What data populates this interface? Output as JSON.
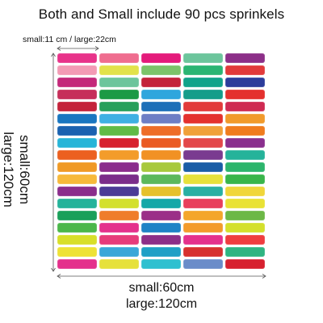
{
  "title": "Both and Small include 90 pcs sprinkels",
  "top_label": "small:11 cm / large:22cm",
  "side_label_1": "small:60cm",
  "side_label_2": "large:120cm",
  "bottom_label_1": "small:60cm",
  "bottom_label_2": "large:120cm",
  "pill_colors": [
    [
      "#e8338a",
      "#ef6d8f",
      "#e41b7b",
      "#6cc59c",
      "#8c2f88"
    ],
    [
      "#f39bb5",
      "#e2e24a",
      "#7bc46a",
      "#2bb573",
      "#e23a3a"
    ],
    [
      "#c4287a",
      "#6cc59c",
      "#c4233a",
      "#11a38a",
      "#2c3d9b"
    ],
    [
      "#c62f5a",
      "#1c9a45",
      "#2fa6dd",
      "#149d8a",
      "#e4312e"
    ],
    [
      "#c4233a",
      "#27a05b",
      "#1d6fb8",
      "#e23a3a",
      "#cf2a52"
    ],
    [
      "#1976c0",
      "#3fb0e3",
      "#6e7ec5",
      "#e4312e",
      "#f19a2b"
    ],
    [
      "#1b62b0",
      "#60bb46",
      "#ee6d28",
      "#f0a13a",
      "#f07c1e"
    ],
    [
      "#27b5d8",
      "#d7212f",
      "#ea5b24",
      "#e3484a",
      "#8a2f8e"
    ],
    [
      "#ec6020",
      "#f39c2a",
      "#f19124",
      "#7a3b90",
      "#25b39a"
    ],
    [
      "#f09a25",
      "#8b2d8c",
      "#a8c93c",
      "#1a5da6",
      "#2db56c"
    ],
    [
      "#f7b93a",
      "#7b2d8a",
      "#5cb85c",
      "#e6e13b",
      "#39b54a"
    ],
    [
      "#8b2d8c",
      "#4c3b96",
      "#e6c12c",
      "#28b0a3",
      "#f0d63a"
    ],
    [
      "#25b39a",
      "#d3e02e",
      "#15a8a8",
      "#e83f5c",
      "#e9e235"
    ],
    [
      "#1aa05a",
      "#ef7d2b",
      "#9b2f88",
      "#f4a62a",
      "#6cb846"
    ],
    [
      "#4bb74a",
      "#e4318c",
      "#1e83c6",
      "#f39b2b",
      "#d4e02c"
    ],
    [
      "#d8df29",
      "#e73b7a",
      "#8c2f88",
      "#e4318c",
      "#ef3d3f"
    ],
    [
      "#eee236",
      "#3aa7d8",
      "#1fa0c6",
      "#d7312f",
      "#2fb582"
    ],
    [
      "#e4318c",
      "#e6e13b",
      "#2fc0d0",
      "#6a8cc9",
      "#d7212f"
    ]
  ]
}
